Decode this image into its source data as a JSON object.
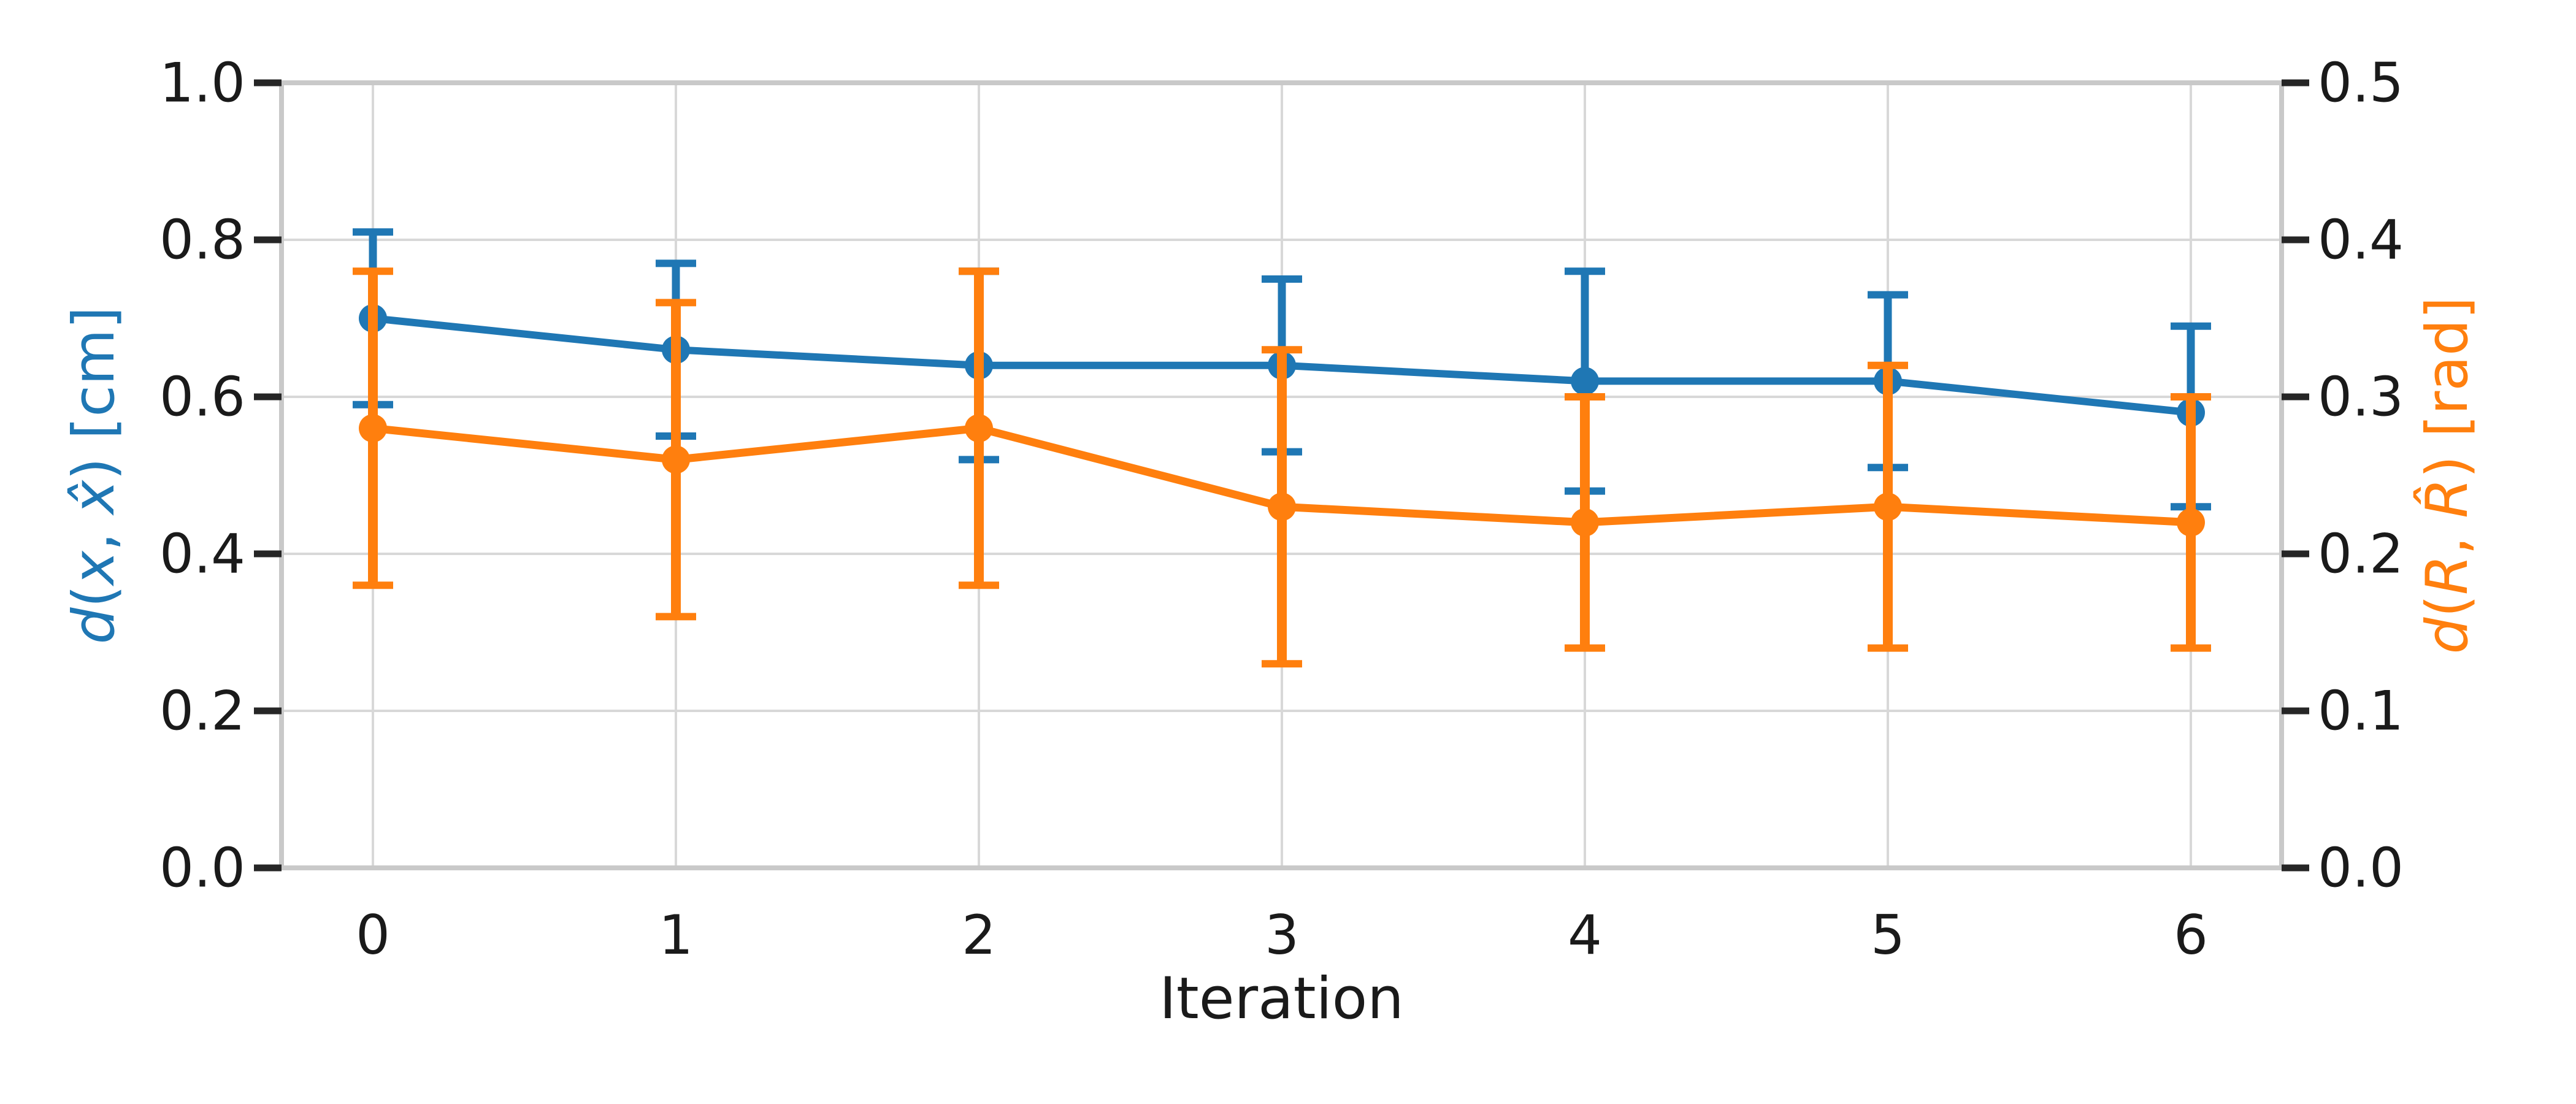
{
  "figure": {
    "background": "#ffffff",
    "grid_color": "#d8d8d8",
    "spine_color": "#c9c9c9",
    "tick_color": "#262626",
    "tick_label_color": "#1a1a1a"
  },
  "chart_data": {
    "type": "line",
    "title": "",
    "xlabel": "Iteration",
    "x": [
      0,
      1,
      2,
      3,
      4,
      5,
      6
    ],
    "x_tick_labels": [
      "0",
      "1",
      "2",
      "3",
      "4",
      "5",
      "6"
    ],
    "grid": true,
    "legend": "none",
    "axes": {
      "left": {
        "label": "d(x, x̂) [cm]",
        "label_parts": [
          [
            "d",
            1
          ],
          [
            "(",
            0
          ],
          [
            "x",
            1
          ],
          [
            ", ",
            0
          ],
          [
            "x̂",
            1
          ],
          [
            ")",
            0
          ],
          [
            " [cm]",
            0
          ]
        ],
        "color": "#1f77b4",
        "range": [
          0.0,
          1.0
        ],
        "ticks": [
          0.0,
          0.2,
          0.4,
          0.6,
          0.8,
          1.0
        ],
        "tick_labels": [
          "0.0",
          "0.2",
          "0.4",
          "0.6",
          "0.8",
          "1.0"
        ]
      },
      "right": {
        "label": "d(R, R̂) [rad]",
        "label_parts": [
          [
            "d",
            1
          ],
          [
            "(",
            0
          ],
          [
            "R",
            1
          ],
          [
            ", ",
            0
          ],
          [
            "R̂",
            1
          ],
          [
            ")",
            0
          ],
          [
            " [rad]",
            0
          ]
        ],
        "color": "#ff7f0e",
        "range": [
          0.0,
          0.5
        ],
        "ticks": [
          0.0,
          0.1,
          0.2,
          0.3,
          0.4,
          0.5
        ],
        "tick_labels": [
          "0.0",
          "0.1",
          "0.2",
          "0.3",
          "0.4",
          "0.5"
        ]
      }
    },
    "series": [
      {
        "name": "d(x, x̂) [cm]",
        "axis": "left",
        "color": "#1f77b4",
        "marker": "circle",
        "values": [
          0.7,
          0.66,
          0.64,
          0.64,
          0.62,
          0.62,
          0.58
        ],
        "err_low": [
          0.59,
          0.55,
          0.52,
          0.53,
          0.48,
          0.51,
          0.46
        ],
        "err_high": [
          0.81,
          0.77,
          0.76,
          0.75,
          0.76,
          0.73,
          0.69
        ]
      },
      {
        "name": "d(R, R̂) [rad]",
        "axis": "right",
        "color": "#ff7f0e",
        "marker": "circle",
        "values": [
          0.28,
          0.26,
          0.28,
          0.23,
          0.22,
          0.23,
          0.22
        ],
        "err_low": [
          0.18,
          0.16,
          0.18,
          0.13,
          0.14,
          0.14,
          0.14
        ],
        "err_high": [
          0.38,
          0.36,
          0.38,
          0.33,
          0.3,
          0.32,
          0.3
        ]
      }
    ]
  }
}
